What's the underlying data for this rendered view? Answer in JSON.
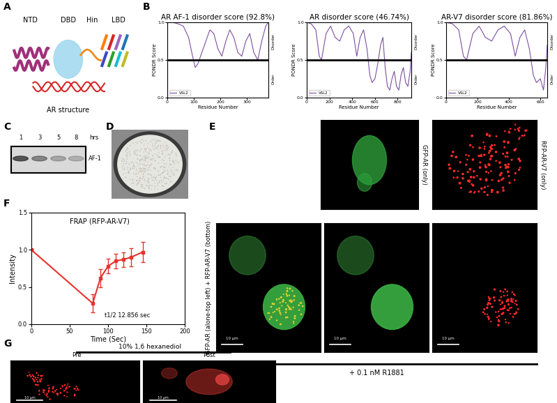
{
  "chart_data": [
    {
      "type": "line",
      "title": "AR AF-1 disorder score (92.8%)",
      "x_label": "Residue Number",
      "y_label": "PONDR Score",
      "x": [
        0,
        20,
        40,
        60,
        80,
        95,
        105,
        115,
        130,
        145,
        160,
        175,
        190,
        205,
        220,
        235,
        250,
        265,
        280,
        295,
        310,
        325,
        340,
        355,
        370,
        380
      ],
      "series": [
        {
          "name": "VSL2",
          "color": "#7b4fa0",
          "values": [
            1.0,
            1.0,
            0.98,
            0.95,
            0.8,
            0.55,
            0.4,
            0.45,
            0.6,
            0.75,
            0.9,
            0.85,
            0.65,
            0.55,
            0.75,
            0.9,
            0.8,
            0.6,
            0.55,
            0.75,
            0.85,
            0.6,
            0.5,
            0.75,
            0.95,
            1.0
          ]
        }
      ],
      "cutoff": 0.5,
      "annotations": [
        "Disorder",
        "Order"
      ],
      "xlim": [
        0,
        380
      ],
      "ylim": [
        0,
        1
      ],
      "xticks": [
        0,
        100,
        200,
        300
      ],
      "yticks": [
        {
          "value": 0,
          "label": "0.0"
        },
        {
          "value": 0.5,
          "label": "0.5"
        },
        {
          "value": 1,
          "label": "1.0"
        }
      ],
      "legend": "lower left"
    },
    {
      "type": "line",
      "title": "AR disorder score (46.74%)",
      "x_label": "Residue Number",
      "y_label": "PONDR Score",
      "x": [
        0,
        40,
        80,
        110,
        130,
        170,
        210,
        250,
        290,
        330,
        370,
        410,
        440,
        470,
        500,
        530,
        555,
        575,
        600,
        625,
        650,
        670,
        690,
        710,
        730,
        750,
        770,
        790,
        810,
        830,
        850,
        870,
        890,
        910,
        920
      ],
      "series": [
        {
          "name": "VSL2",
          "color": "#7b4fa0",
          "values": [
            1.0,
            0.98,
            0.9,
            0.55,
            0.5,
            0.85,
            0.95,
            0.8,
            0.75,
            0.9,
            0.95,
            0.85,
            0.55,
            0.8,
            0.9,
            0.65,
            0.3,
            0.2,
            0.25,
            0.45,
            0.7,
            0.8,
            0.4,
            0.15,
            0.1,
            0.25,
            0.35,
            0.15,
            0.1,
            0.3,
            0.4,
            0.2,
            0.15,
            0.35,
            0.6
          ]
        }
      ],
      "cutoff": 0.5,
      "annotations": [
        "Disorder",
        "Order"
      ],
      "xlim": [
        0,
        920
      ],
      "ylim": [
        0,
        1
      ],
      "xticks": [
        0,
        200,
        400,
        600,
        800
      ],
      "yticks": [
        {
          "value": 0,
          "label": "0.0"
        },
        {
          "value": 0.5,
          "label": "0.5"
        },
        {
          "value": 1,
          "label": "1.0"
        }
      ],
      "legend": "lower left"
    },
    {
      "type": "line",
      "title": "AR-V7 disorder score (81.86%)",
      "x_label": "Residue Number",
      "y_label": "PONDR Score",
      "x": [
        0,
        40,
        80,
        110,
        130,
        170,
        210,
        250,
        290,
        330,
        370,
        410,
        440,
        470,
        500,
        530,
        555,
        575,
        600,
        620,
        635,
        644
      ],
      "series": [
        {
          "name": "VSL2",
          "color": "#7b4fa0",
          "values": [
            1.0,
            0.98,
            0.9,
            0.55,
            0.5,
            0.85,
            0.95,
            0.8,
            0.75,
            0.9,
            0.95,
            0.85,
            0.55,
            0.8,
            0.9,
            0.65,
            0.3,
            0.2,
            0.25,
            0.1,
            0.4,
            0.7
          ]
        }
      ],
      "cutoff": 0.5,
      "annotations": [
        "Disorder",
        "Order"
      ],
      "xlim": [
        0,
        644
      ],
      "ylim": [
        0,
        1
      ],
      "xticks": [
        0,
        200,
        400,
        600
      ],
      "yticks": [
        {
          "value": 0,
          "label": "0.0"
        },
        {
          "value": 0.5,
          "label": "0.5"
        },
        {
          "value": 1,
          "label": "1.0"
        }
      ],
      "legend": "lower left"
    },
    {
      "type": "line",
      "title": "FRAP (RFP-AR-V7)",
      "x_label": "Time (Sec)",
      "y_label": "Intensity",
      "x": [
        0,
        80,
        90,
        100,
        110,
        120,
        130,
        145
      ],
      "values": [
        1.0,
        0.28,
        0.62,
        0.78,
        0.85,
        0.87,
        0.9,
        0.97
      ],
      "errors": [
        0,
        0.12,
        0.12,
        0.1,
        0.1,
        0.1,
        0.12,
        0.14
      ],
      "color": "#e8322c",
      "marker": "square",
      "annotation": "t1/2 12.856 sec",
      "xlim": [
        0,
        200
      ],
      "ylim": [
        0,
        1.5
      ],
      "xticks": [
        0,
        50,
        100,
        150,
        200
      ],
      "yticks": [
        {
          "value": 0,
          "label": "0.0"
        },
        {
          "value": 0.5,
          "label": "0.5"
        },
        {
          "value": 1,
          "label": "1.0"
        },
        {
          "value": 1.5,
          "label": "1.5"
        }
      ]
    }
  ],
  "panel_letters": [
    "A",
    "B",
    "C",
    "D",
    "E",
    "F",
    "G"
  ],
  "panel_A": {
    "domains": [
      "NTD",
      "DBD",
      "Hin",
      "LBD"
    ],
    "caption": "AR structure"
  },
  "panel_C": {
    "lanes": [
      "1",
      "3",
      "5",
      "8"
    ],
    "unit": "hrs",
    "band": "AF-1"
  },
  "panel_E": {
    "labels": [
      "GFP-AR (only)",
      "RFP-AR-V7 (only)",
      "GFP-AR (alone-top left) + RFP-AR-V7 (bottom)"
    ],
    "treatment": "+ 0.1 nM R1881",
    "scale_bar": "10 µm"
  },
  "panel_G": {
    "treatment": "10% 1,6 hexanediol",
    "labels": [
      "Pre",
      "Post"
    ],
    "scale_bar": "10 µm"
  }
}
